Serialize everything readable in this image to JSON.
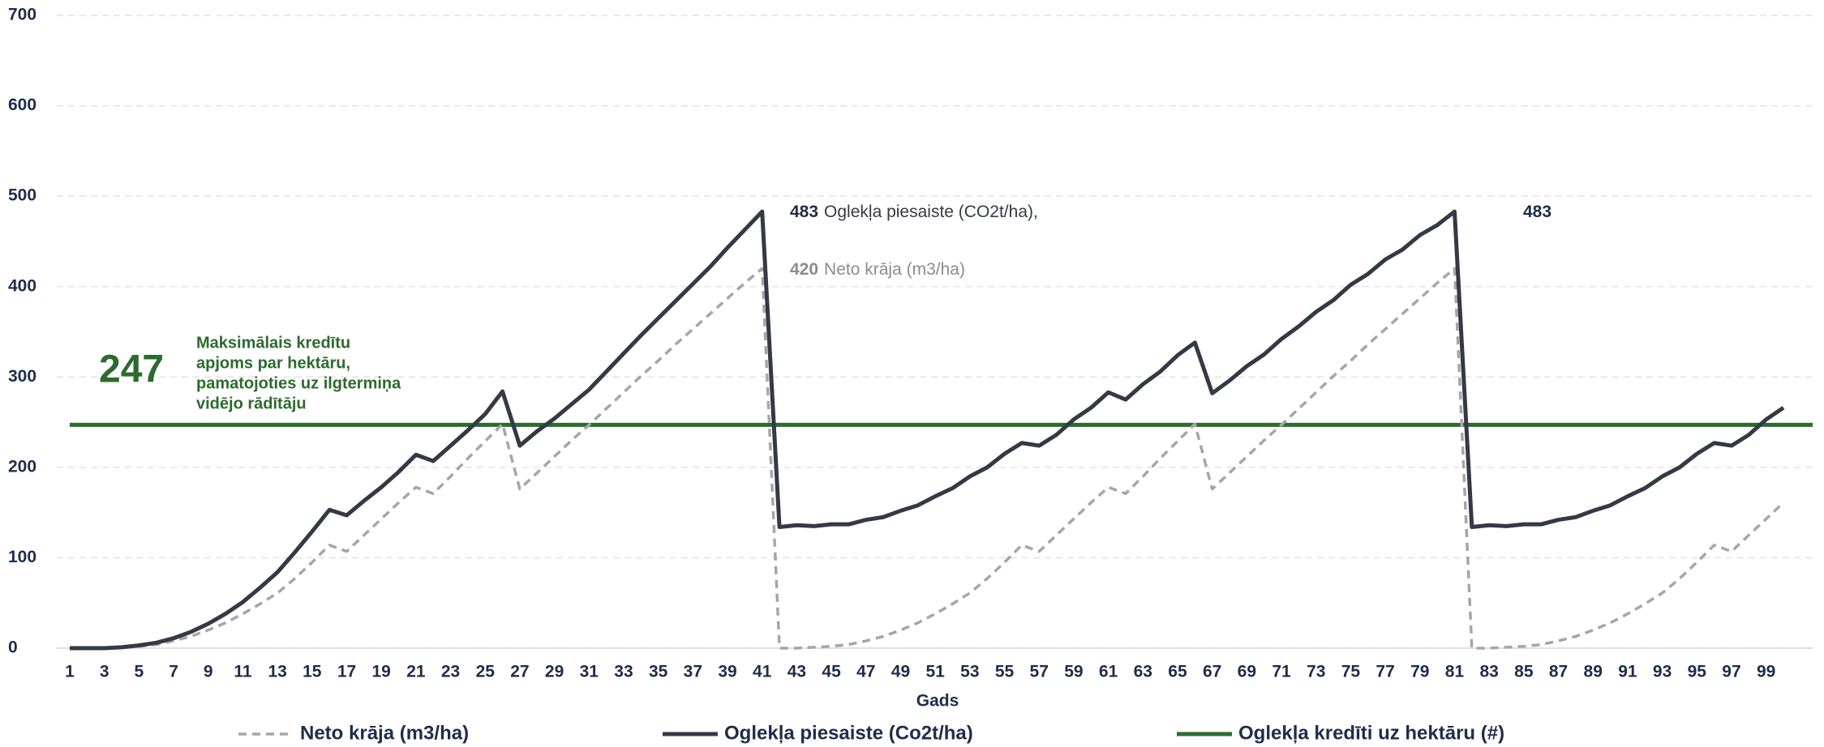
{
  "chart_data": {
    "type": "line",
    "x_label": "Gads",
    "x": [
      1,
      2,
      3,
      4,
      5,
      6,
      7,
      8,
      9,
      10,
      11,
      12,
      13,
      14,
      15,
      16,
      17,
      18,
      19,
      20,
      21,
      22,
      23,
      24,
      25,
      26,
      27,
      28,
      29,
      30,
      31,
      32,
      33,
      34,
      35,
      36,
      37,
      38,
      39,
      40,
      41,
      42,
      43,
      44,
      45,
      46,
      47,
      48,
      49,
      50,
      51,
      52,
      53,
      54,
      55,
      56,
      57,
      58,
      59,
      60,
      61,
      62,
      63,
      64,
      65,
      66,
      67,
      68,
      69,
      70,
      71,
      72,
      73,
      74,
      75,
      76,
      77,
      78,
      79,
      80,
      81,
      82,
      83,
      84,
      85,
      86,
      87,
      88,
      89,
      90,
      91,
      92,
      93,
      94,
      95,
      96,
      97,
      98,
      99,
      100
    ],
    "xlim": [
      1,
      100
    ],
    "xticks": [
      1,
      3,
      5,
      7,
      9,
      11,
      13,
      15,
      17,
      19,
      21,
      23,
      25,
      27,
      29,
      31,
      33,
      35,
      37,
      39,
      41,
      43,
      45,
      47,
      49,
      51,
      53,
      55,
      57,
      59,
      61,
      63,
      65,
      67,
      69,
      71,
      73,
      75,
      77,
      79,
      81,
      83,
      85,
      87,
      89,
      91,
      93,
      95,
      97,
      99
    ],
    "ylim": [
      0,
      700
    ],
    "yticks": [
      0,
      100,
      200,
      300,
      400,
      500,
      600,
      700
    ],
    "grid": true,
    "series": [
      {
        "name": "Neto krāja (m3/ha)",
        "color": "#a6a6a6",
        "dashed": true,
        "values": [
          0,
          0,
          0,
          1,
          2,
          4,
          8,
          13,
          20,
          28,
          38,
          49,
          61,
          77,
          95,
          114,
          107,
          125,
          143,
          161,
          178,
          171,
          190,
          210,
          229,
          248,
          176,
          194,
          212,
          230,
          247,
          265,
          283,
          301,
          318,
          336,
          353,
          370,
          387,
          404,
          420,
          0,
          0,
          1,
          2,
          4,
          8,
          13,
          20,
          28,
          38,
          49,
          61,
          77,
          95,
          114,
          107,
          125,
          143,
          161,
          178,
          171,
          190,
          210,
          229,
          248,
          176,
          194,
          212,
          230,
          247,
          265,
          283,
          301,
          318,
          336,
          353,
          370,
          387,
          404,
          420,
          0,
          0,
          1,
          2,
          4,
          8,
          13,
          20,
          28,
          38,
          49,
          61,
          77,
          95,
          114,
          107,
          125,
          143,
          161
        ]
      },
      {
        "name": "Oglekļa piesaiste (Co2t/ha)",
        "color": "#333a45",
        "dashed": false,
        "values": [
          0,
          0,
          0,
          1,
          3,
          6,
          11,
          18,
          27,
          38,
          51,
          67,
          84,
          106,
          129,
          153,
          147,
          163,
          178,
          195,
          214,
          207,
          224,
          241,
          259,
          284,
          224,
          240,
          254,
          270,
          286,
          306,
          326,
          346,
          365,
          384,
          403,
          422,
          443,
          463,
          483,
          134,
          136,
          135,
          137,
          137,
          142,
          145,
          152,
          158,
          168,
          177,
          190,
          200,
          215,
          227,
          224,
          236,
          253,
          266,
          283,
          275,
          292,
          306,
          324,
          338,
          282,
          296,
          312,
          325,
          342,
          356,
          372,
          385,
          402,
          414,
          430,
          441,
          457,
          468,
          483,
          134,
          136,
          135,
          137,
          137,
          142,
          145,
          152,
          158,
          168,
          177,
          190,
          200,
          215,
          227,
          224,
          236,
          253,
          266
        ]
      }
    ],
    "reference_line": {
      "name": "Oglekļa kredīti uz hektāru (#)",
      "value": 247,
      "color": "#2d6a2e"
    },
    "annotations": [
      "Oglekļa piesaiste (CO2t/ha),",
      "Neto krāja (m3/ha)",
      "Maksimālais kredītu",
      "apjoms par hektāru,",
      "pamatojoties uz ilgtermiņa",
      "vidējo rādītāju"
    ]
  }
}
